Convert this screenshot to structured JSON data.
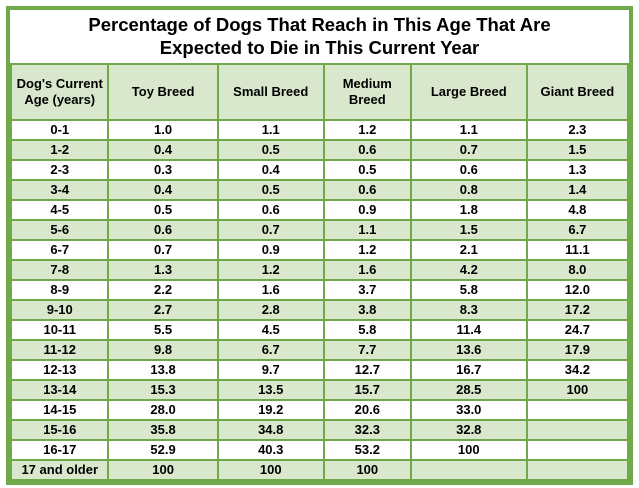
{
  "title": {
    "line1": "Percentage of Dogs That Reach in This Age That Are",
    "line2": "Expected to Die in This Current Year"
  },
  "chart_data": {
    "type": "table",
    "title": "Percentage of Dogs That Reach in This Age That Are Expected to Die in This Current Year",
    "columns": [
      "Dog's Current Age (years)",
      "Toy Breed",
      "Small Breed",
      "Medium Breed",
      "Large Breed",
      "Giant Breed"
    ],
    "rows": [
      [
        "0-1",
        "1.0",
        "1.1",
        "1.2",
        "1.1",
        "2.3"
      ],
      [
        "1-2",
        "0.4",
        "0.5",
        "0.6",
        "0.7",
        "1.5"
      ],
      [
        "2-3",
        "0.3",
        "0.4",
        "0.5",
        "0.6",
        "1.3"
      ],
      [
        "3-4",
        "0.4",
        "0.5",
        "0.6",
        "0.8",
        "1.4"
      ],
      [
        "4-5",
        "0.5",
        "0.6",
        "0.9",
        "1.8",
        "4.8"
      ],
      [
        "5-6",
        "0.6",
        "0.7",
        "1.1",
        "1.5",
        "6.7"
      ],
      [
        "6-7",
        "0.7",
        "0.9",
        "1.2",
        "2.1",
        "11.1"
      ],
      [
        "7-8",
        "1.3",
        "1.2",
        "1.6",
        "4.2",
        "8.0"
      ],
      [
        "8-9",
        "2.2",
        "1.6",
        "3.7",
        "5.8",
        "12.0"
      ],
      [
        "9-10",
        "2.7",
        "2.8",
        "3.8",
        "8.3",
        "17.2"
      ],
      [
        "10-11",
        "5.5",
        "4.5",
        "5.8",
        "11.4",
        "24.7"
      ],
      [
        "11-12",
        "9.8",
        "6.7",
        "7.7",
        "13.6",
        "17.9"
      ],
      [
        "12-13",
        "13.8",
        "9.7",
        "12.7",
        "16.7",
        "34.2"
      ],
      [
        "13-14",
        "15.3",
        "13.5",
        "15.7",
        "28.5",
        "100"
      ],
      [
        "14-15",
        "28.0",
        "19.2",
        "20.6",
        "33.0",
        ""
      ],
      [
        "15-16",
        "35.8",
        "34.8",
        "32.3",
        "32.8",
        ""
      ],
      [
        "16-17",
        "52.9",
        "40.3",
        "53.2",
        "100",
        ""
      ],
      [
        "17 and older",
        "100",
        "100",
        "100",
        "",
        ""
      ]
    ]
  },
  "colors": {
    "border_green": "#70a94c",
    "row_green": "#d9e8cc",
    "row_white": "#ffffff",
    "text_black": "#000000",
    "page_bg": "#ffffff"
  }
}
